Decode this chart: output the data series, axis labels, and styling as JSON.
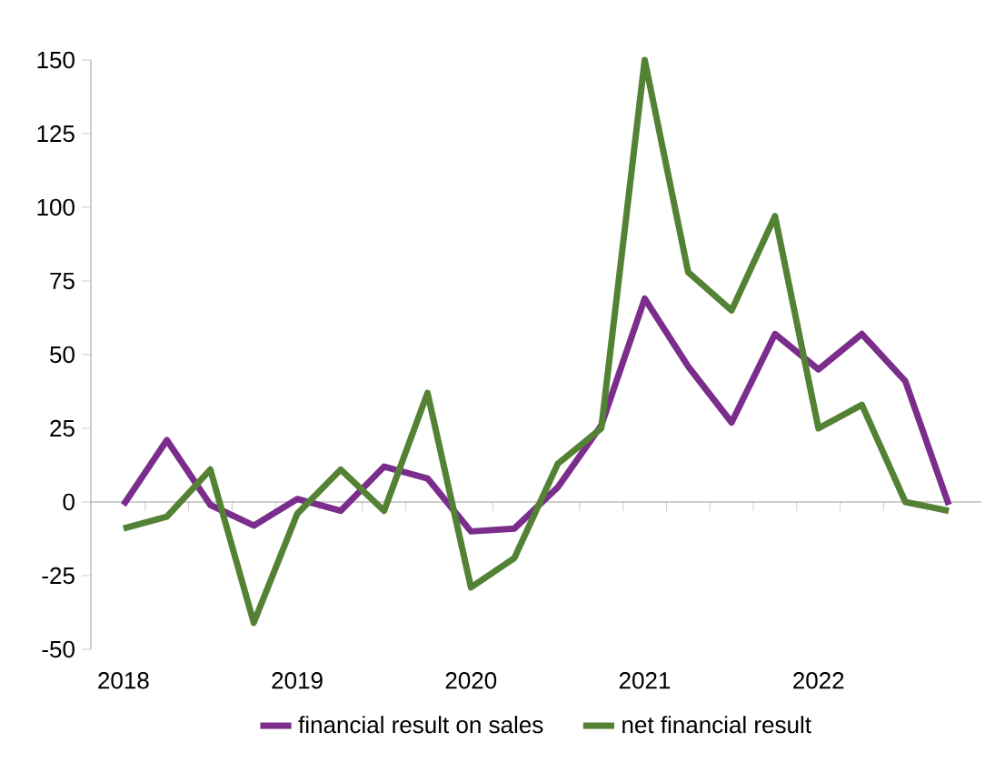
{
  "chart_data": {
    "type": "line",
    "categories": [
      "2018",
      null,
      null,
      null,
      "2019",
      null,
      null,
      null,
      "2020",
      null,
      null,
      null,
      "2021",
      null,
      null,
      null,
      "2022",
      null,
      null,
      null
    ],
    "series": [
      {
        "name": "financial result on sales",
        "color": "#7b2d8b",
        "values": [
          -1,
          21,
          -1,
          -8,
          1,
          -3,
          12,
          8,
          -10,
          -9,
          5,
          26,
          69,
          46,
          27,
          57,
          45,
          57,
          41,
          -1
        ]
      },
      {
        "name": "net financial result",
        "color": "#548235",
        "values": [
          -9,
          -5,
          11,
          -41,
          -4,
          11,
          -3,
          37,
          -29,
          -19,
          13,
          25,
          150,
          78,
          65,
          97,
          25,
          33,
          0,
          -3
        ]
      }
    ],
    "ylim": [
      -50,
      150
    ],
    "yticks": [
      -50,
      -25,
      0,
      25,
      50,
      75,
      100,
      125,
      150
    ],
    "legend": "bottom",
    "marker": "none",
    "line_style": "solid"
  }
}
